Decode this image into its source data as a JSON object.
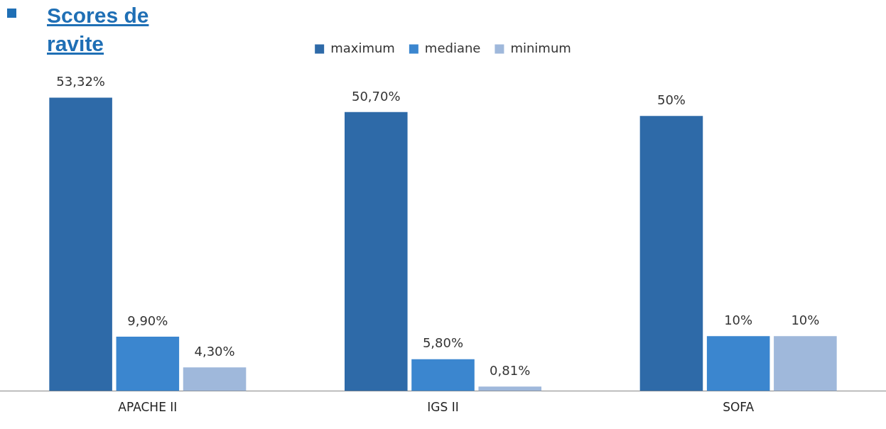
{
  "chart_data": {
    "type": "bar",
    "title": "Scores de ravite",
    "categories": [
      "APACHE II",
      "IGS II",
      "SOFA"
    ],
    "series": [
      {
        "name": "maximum",
        "color": "#2e6aa8",
        "values": [
          53.32,
          50.7,
          50
        ],
        "value_labels": [
          "53,32%",
          "50,70%",
          "50%"
        ]
      },
      {
        "name": "mediane",
        "color": "#3b86cf",
        "values": [
          9.9,
          5.8,
          10
        ],
        "value_labels": [
          "9,90%",
          "5,80%",
          "10%"
        ]
      },
      {
        "name": "minimum",
        "color": "#9fb8db",
        "values": [
          4.3,
          0.81,
          10
        ],
        "value_labels": [
          "4,30%",
          "0,81%",
          "10%"
        ]
      }
    ],
    "legend": "top",
    "grid": false
  }
}
